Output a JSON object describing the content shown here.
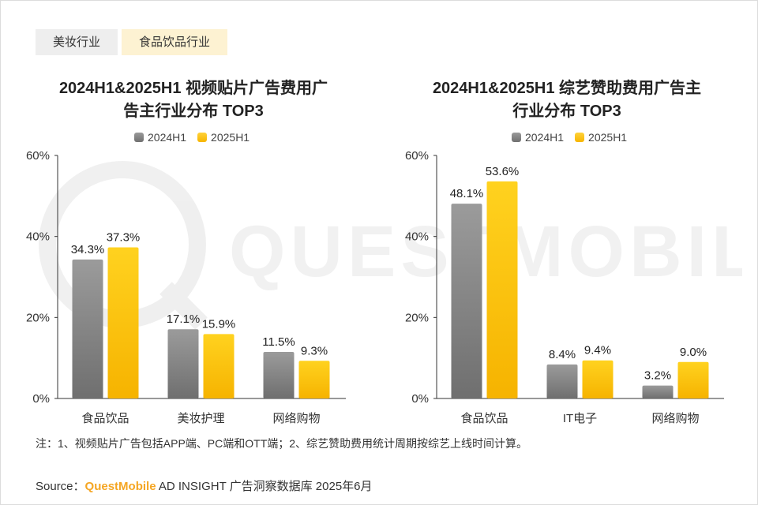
{
  "tabs": [
    {
      "label": "美妆行业",
      "active": false
    },
    {
      "label": "食品饮品行业",
      "active": true
    }
  ],
  "legend": {
    "series1": "2024H1",
    "series2": "2025H1"
  },
  "colors": {
    "series1": "#808080",
    "series2": "#fcc200"
  },
  "chart_data": [
    {
      "type": "bar",
      "title": "2024H1&2025H1 视频贴片广告费用广告主行业分布 TOP3",
      "title_lines": [
        "2024H1&2025H1 视频贴片广告费用广",
        "告主行业分布 TOP3"
      ],
      "categories": [
        "食品饮品",
        "美妆护理",
        "网络购物"
      ],
      "series": [
        {
          "name": "2024H1",
          "values": [
            34.3,
            17.1,
            11.5
          ],
          "labels": [
            "34.3%",
            "17.1%",
            "11.5%"
          ]
        },
        {
          "name": "2025H1",
          "values": [
            37.3,
            15.9,
            9.3
          ],
          "labels": [
            "37.3%",
            "15.9%",
            "9.3%"
          ]
        }
      ],
      "yticks": [
        "0%",
        "20%",
        "40%",
        "60%"
      ],
      "ylim": [
        0,
        60
      ],
      "legend_position": "top-center",
      "grid": false
    },
    {
      "type": "bar",
      "title": "2024H1&2025H1 综艺赞助费用广告主行业分布 TOP3",
      "title_lines": [
        "2024H1&2025H1 综艺赞助费用广告主",
        "行业分布 TOP3"
      ],
      "categories": [
        "食品饮品",
        "IT电子",
        "网络购物"
      ],
      "series": [
        {
          "name": "2024H1",
          "values": [
            48.1,
            8.4,
            3.2
          ],
          "labels": [
            "48.1%",
            "8.4%",
            "3.2%"
          ]
        },
        {
          "name": "2025H1",
          "values": [
            53.6,
            9.4,
            9.0
          ],
          "labels": [
            "53.6%",
            "9.4%",
            "9.0%"
          ]
        }
      ],
      "yticks": [
        "0%",
        "20%",
        "40%",
        "60%"
      ],
      "ylim": [
        0,
        60
      ],
      "legend_position": "top-center",
      "grid": false
    }
  ],
  "note": "注：1、视频贴片广告包括APP端、PC端和OTT端；2、综艺赞助费用统计周期按综艺上线时间计算。",
  "source": {
    "prefix": "Source：",
    "brand": "QuestMobile",
    "rest": " AD INSIGHT 广告洞察数据库 2025年6月"
  },
  "watermark_text": "QUESTMOBILE"
}
